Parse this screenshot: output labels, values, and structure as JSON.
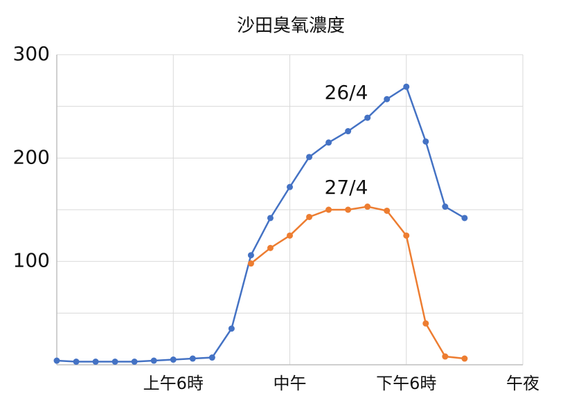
{
  "chart_data": {
    "type": "line",
    "title": "沙田臭氧濃度",
    "x": [
      0,
      1,
      2,
      3,
      4,
      5,
      6,
      7,
      8,
      9,
      10,
      11,
      12,
      13,
      14,
      15,
      16,
      17,
      18,
      19,
      20,
      21
    ],
    "xlim": [
      0,
      24
    ],
    "xticks": [
      {
        "value": 6,
        "label": "上午6時"
      },
      {
        "value": 12,
        "label": "中午"
      },
      {
        "value": 18,
        "label": "下午6時"
      },
      {
        "value": 24,
        "label": "午夜"
      }
    ],
    "ylim": [
      0,
      300
    ],
    "yticks": [
      100,
      200,
      300
    ],
    "grid": true,
    "series": [
      {
        "name": "26/4",
        "color": "#4472c4",
        "values": [
          4,
          3,
          3,
          3,
          3,
          4,
          5,
          6,
          7,
          35,
          106,
          142,
          172,
          201,
          215,
          226,
          239,
          257,
          269,
          216,
          153,
          142
        ]
      },
      {
        "name": "27/4",
        "color": "#ed7d31",
        "values": [
          null,
          null,
          null,
          null,
          null,
          null,
          null,
          null,
          null,
          null,
          98,
          113,
          125,
          143,
          150,
          150,
          153,
          149,
          125,
          40,
          8,
          6
        ]
      }
    ]
  }
}
